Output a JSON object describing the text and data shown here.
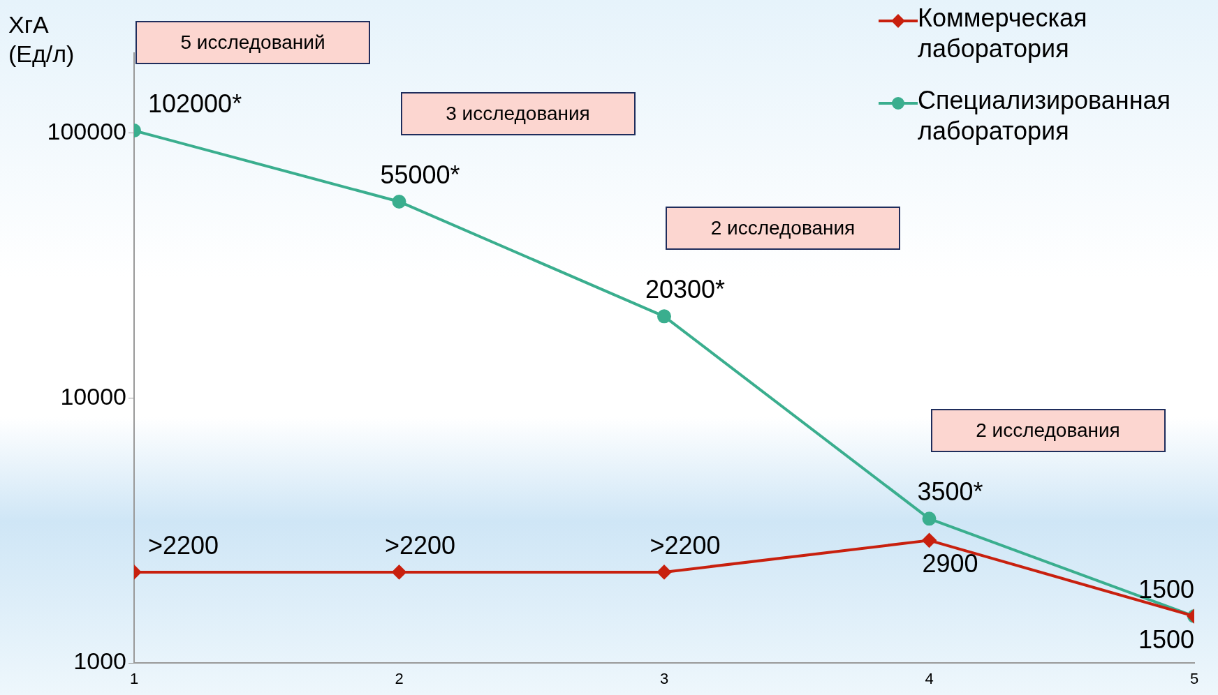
{
  "chart_data": {
    "type": "line",
    "ylabel": "ХгА (Ед/л)",
    "log": "y",
    "xlim": [
      1,
      5
    ],
    "xticks": [
      1,
      2,
      3,
      4,
      5
    ],
    "ylim": [
      1000,
      200000
    ],
    "yticks": [
      1000,
      10000,
      100000
    ],
    "grid": false,
    "legend": "top right",
    "line_style": "solid",
    "x": [
      1,
      2,
      3,
      4,
      5
    ],
    "series": [
      {
        "name": "Коммерческая лаборатория",
        "color": "#c8200e",
        "marker": "diamond",
        "values": [
          2200,
          2200,
          2200,
          2900,
          1500
        ],
        "value_labels": [
          ">2200",
          ">2200",
          ">2200",
          "2900",
          "1500"
        ]
      },
      {
        "name": "Специализированная лаборатория",
        "color": "#3aae8e",
        "marker": "circle",
        "values": [
          102000,
          55000,
          20300,
          3500,
          1500
        ],
        "value_labels": [
          "102000*",
          "55000*",
          "20300*",
          "3500*",
          "1500"
        ]
      }
    ],
    "annotations": [
      "5 исследований",
      "3 исследования",
      "2 исследования",
      "2 исследования"
    ]
  }
}
